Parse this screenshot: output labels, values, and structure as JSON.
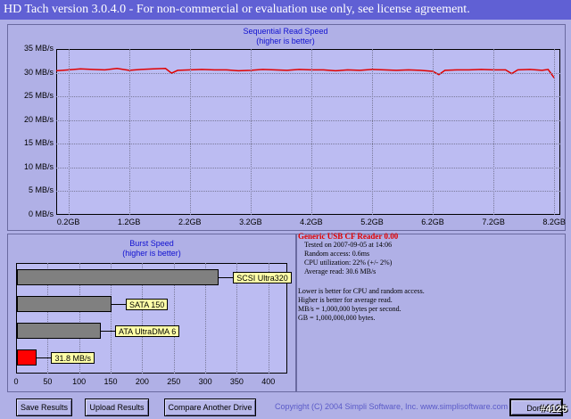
{
  "window": {
    "title": "HD Tach version 3.0.4.0  - For non-commercial or evaluation use only, see license agreement."
  },
  "read_chart": {
    "title": "Sequential Read Speed",
    "subtitle": "(higher is better)",
    "y_ticks": [
      "35 MB/s",
      "30 MB/s",
      "25 MB/s",
      "20 MB/s",
      "15 MB/s",
      "10 MB/s",
      "5 MB/s",
      "0 MB/s"
    ],
    "x_ticks": [
      "0.2GB",
      "1.2GB",
      "2.2GB",
      "3.2GB",
      "4.2GB",
      "5.2GB",
      "6.2GB",
      "7.2GB",
      "8.2GB"
    ],
    "line_color": "#e00000"
  },
  "burst_chart": {
    "title": "Burst Speed",
    "subtitle": "(higher is better)",
    "x_ticks": [
      "0",
      "50",
      "100",
      "150",
      "200",
      "250",
      "300",
      "350",
      "400"
    ],
    "bars": [
      {
        "label": "SCSI Ultra320",
        "color": "#808080"
      },
      {
        "label": "SATA 150",
        "color": "#808080"
      },
      {
        "label": "ATA UltraDMA 6",
        "color": "#808080"
      },
      {
        "label": "31.8 MB/s",
        "color": "#ff0000"
      }
    ]
  },
  "chart_data": [
    {
      "type": "line",
      "title": "Sequential Read Speed",
      "subtitle": "(higher is better)",
      "xlabel": "",
      "ylabel": "",
      "x_unit": "GB",
      "y_unit": "MB/s",
      "xlim": [
        0,
        8.3
      ],
      "ylim": [
        0,
        35
      ],
      "series": [
        {
          "x": [
            0.0,
            0.2,
            0.4,
            0.6,
            0.8,
            1.0,
            1.2,
            1.4,
            1.6,
            1.8,
            1.9,
            2.0,
            2.2,
            2.4,
            2.6,
            2.8,
            3.0,
            3.2,
            3.4,
            3.6,
            3.8,
            4.0,
            4.2,
            4.4,
            4.6,
            4.8,
            5.0,
            5.2,
            5.4,
            5.6,
            5.8,
            6.0,
            6.2,
            6.3,
            6.4,
            6.6,
            6.8,
            7.0,
            7.2,
            7.4,
            7.5,
            7.6,
            7.8,
            8.0,
            8.1,
            8.2
          ],
          "y": [
            30.4,
            30.6,
            30.8,
            30.7,
            30.6,
            30.9,
            30.5,
            30.7,
            30.8,
            30.9,
            29.9,
            30.5,
            30.6,
            30.7,
            30.6,
            30.6,
            30.4,
            30.5,
            30.7,
            30.6,
            30.5,
            30.7,
            30.6,
            30.6,
            30.4,
            30.6,
            30.5,
            30.7,
            30.6,
            30.5,
            30.6,
            30.5,
            30.3,
            29.6,
            30.5,
            30.6,
            30.6,
            30.7,
            30.6,
            30.6,
            29.8,
            30.6,
            30.7,
            30.5,
            30.7,
            28.9
          ]
        }
      ],
      "grid": true
    },
    {
      "type": "bar",
      "orientation": "horizontal",
      "title": "Burst Speed",
      "subtitle": "(higher is better)",
      "xlabel": "",
      "ylabel": "",
      "xlim": [
        0,
        430
      ],
      "categories": [
        "SCSI Ultra320",
        "SATA 150",
        "ATA UltraDMA 6",
        "31.8 MB/s"
      ],
      "values": [
        320,
        150,
        133,
        31.8
      ],
      "grid": true
    }
  ],
  "info": {
    "device": "Generic USB CF Reader 0.00",
    "tested": "Tested on 2007-09-05 at 14:06",
    "random": "Random access: 0.6ms",
    "cpu": "CPU utilization: 22% (+/- 2%)",
    "avg": "Average read: 30.6 MB/s",
    "note1": "Lower is better for CPU and random access.",
    "note2": "Higher is better for average read.",
    "note3": "MB/s = 1,000,000 bytes per second.",
    "note4": "GB = 1,000,000,000 bytes."
  },
  "buttons": {
    "save": "Save Results",
    "upload": "Upload Results",
    "compare": "Compare Another Drive",
    "done": "Done"
  },
  "footer": {
    "copyright": "Copyright (C) 2004 Simpli Software, Inc. www.simplisoftware.com",
    "watermark": "#4125"
  }
}
